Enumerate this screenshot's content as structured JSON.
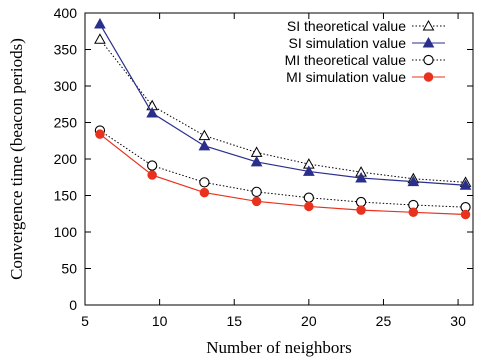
{
  "chart_data": {
    "type": "line",
    "xlabel": "Number of neighbors",
    "ylabel": "Convergence time (beacon periods)",
    "xlim": [
      5,
      31
    ],
    "ylim": [
      0,
      400
    ],
    "xticks": [
      5,
      10,
      15,
      20,
      25,
      30
    ],
    "yticks": [
      0,
      50,
      100,
      150,
      200,
      250,
      300,
      350,
      400
    ],
    "grid": false,
    "legend_position": "top-right",
    "x": [
      6,
      9.5,
      13,
      16.5,
      20,
      23.5,
      27,
      30.5
    ],
    "series": [
      {
        "name": "SI theoretical value",
        "values": [
          364,
          273,
          232,
          209,
          193,
          182,
          173,
          168
        ],
        "color": "#000000",
        "line_style": "dotted",
        "marker": "open-triangle"
      },
      {
        "name": "SI simulation value",
        "values": [
          385,
          263,
          218,
          196,
          183,
          174,
          169,
          164
        ],
        "color": "#2b2f8c",
        "line_style": "solid",
        "marker": "filled-triangle"
      },
      {
        "name": "MI theoretical value",
        "values": [
          239,
          191,
          168,
          155,
          147,
          141,
          137,
          134
        ],
        "color": "#000000",
        "line_style": "dotted",
        "marker": "open-circle"
      },
      {
        "name": "MI simulation value",
        "values": [
          234,
          178,
          154,
          142,
          135,
          130,
          127,
          124
        ],
        "color": "#e8321e",
        "line_style": "solid",
        "marker": "filled-circle"
      }
    ]
  }
}
